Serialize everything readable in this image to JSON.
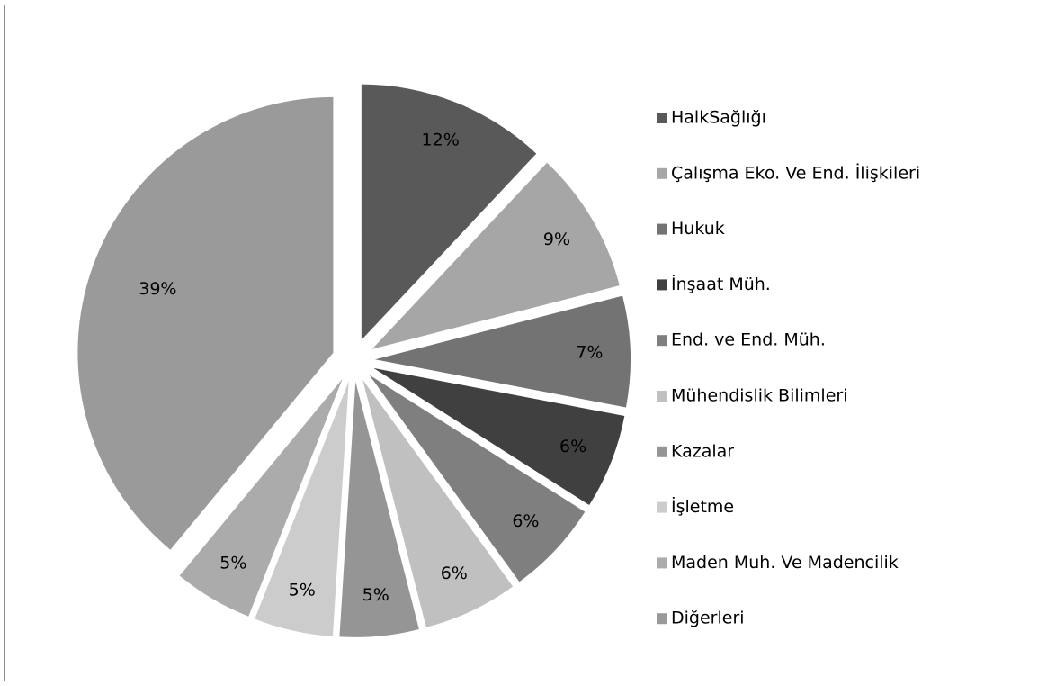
{
  "chart_data": {
    "type": "pie",
    "categories": [
      "HalkSağlığı",
      "Çalışma Eko. Ve End. İlişkileri",
      "Hukuk",
      "İnşaat Müh.",
      "End. ve End. Müh.",
      "Mühendislik Bilimleri",
      "Kazalar",
      "İşletme",
      "Maden Muh. Ve Madencilik",
      "Diğerleri"
    ],
    "values": [
      12,
      9,
      7,
      6,
      6,
      6,
      5,
      5,
      5,
      39
    ],
    "value_labels": [
      "12%",
      "9%",
      "7%",
      "6%",
      "6%",
      "6%",
      "5%",
      "5%",
      "5%",
      "39%"
    ],
    "colors": [
      "#595959",
      "#a6a6a6",
      "#737373",
      "#404040",
      "#7f7f7f",
      "#c0c0c0",
      "#959595",
      "#cccccc",
      "#ababab",
      "#9a9a9a"
    ],
    "legend": "right"
  }
}
